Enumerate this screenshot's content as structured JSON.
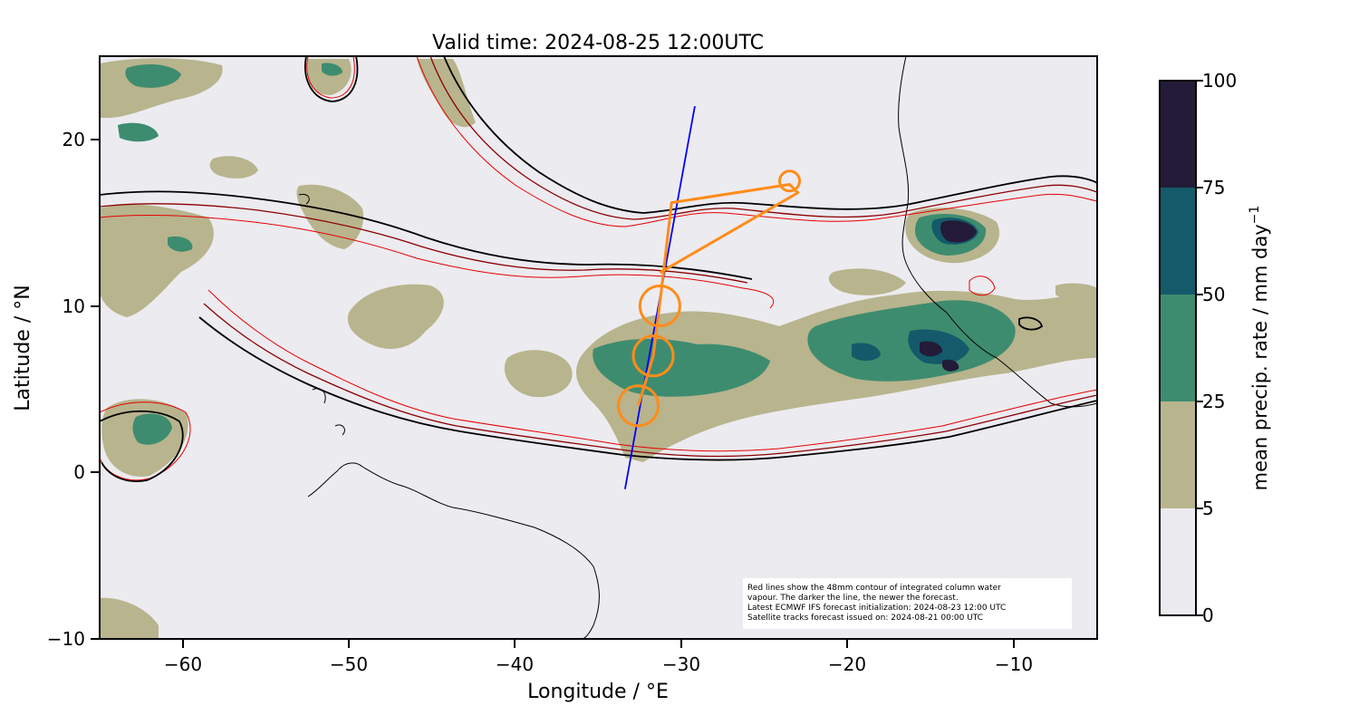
{
  "title": "Valid time: 2024-08-25 12:00UTC",
  "xaxis": {
    "label": "Longitude / °E",
    "range": [
      -65,
      -5
    ],
    "ticks": [
      -60,
      -50,
      -40,
      -30,
      -20,
      -10
    ],
    "tick_labels": [
      "−60",
      "−50",
      "−40",
      "−30",
      "−20",
      "−10"
    ]
  },
  "yaxis": {
    "label": "Latitude / °N",
    "range": [
      -10,
      25
    ],
    "ticks": [
      -10,
      0,
      10,
      20
    ],
    "tick_labels": [
      "−10",
      "0",
      "10",
      "20"
    ]
  },
  "colorbar": {
    "label": "mean precip. rate / mm day",
    "label_superscript": "−1",
    "levels": [
      0,
      5,
      25,
      50,
      75,
      100
    ],
    "tick_labels": [
      "0",
      "5",
      "25",
      "50",
      "75",
      "100"
    ],
    "colors": [
      "#ecebf0",
      "#b8b48d",
      "#3e8c6f",
      "#145a6a",
      "#231b38"
    ]
  },
  "note": {
    "lines": [
      "Red lines show the 48mm contour of integrated column water",
      "vapour. The darker the line, the newer the forecast.",
      "Latest ECMWF IFS forecast initialization: 2024-08-23 12:00 UTC",
      "Satellite tracks forecast issued on: 2024-08-21 00:00 UTC"
    ]
  },
  "colors": {
    "background": "#ecebf0",
    "iwv_contours": [
      "#e60000",
      "#8b0000",
      "#4a0000",
      "#000000"
    ],
    "satellite_track": "#0000ff",
    "flight_track": "#ff8c1a",
    "coastline": "#000000"
  },
  "satellite_track": {
    "lon": [
      -33.4,
      -29.2
    ],
    "lat": [
      -1,
      22
    ]
  },
  "flight_track": {
    "points": [
      {
        "lon": -32.6,
        "lat": 4.0
      },
      {
        "lon": -31.7,
        "lat": 7.0
      },
      {
        "lon": -31.3,
        "lat": 10.2
      },
      {
        "lon": -30.6,
        "lat": 16.2
      },
      {
        "lon": -23.5,
        "lat": 17.3
      },
      {
        "lon": -23.0,
        "lat": 16.8
      },
      {
        "lon": -31.3,
        "lat": 12.0
      }
    ],
    "circles": [
      {
        "lon": -32.6,
        "lat": 4.0,
        "radius_deg": 1.2
      },
      {
        "lon": -31.7,
        "lat": 7.0,
        "radius_deg": 1.2
      },
      {
        "lon": -31.3,
        "lat": 10.0,
        "radius_deg": 1.2
      },
      {
        "lon": -23.5,
        "lat": 17.5,
        "radius_deg": 0.6
      }
    ]
  }
}
